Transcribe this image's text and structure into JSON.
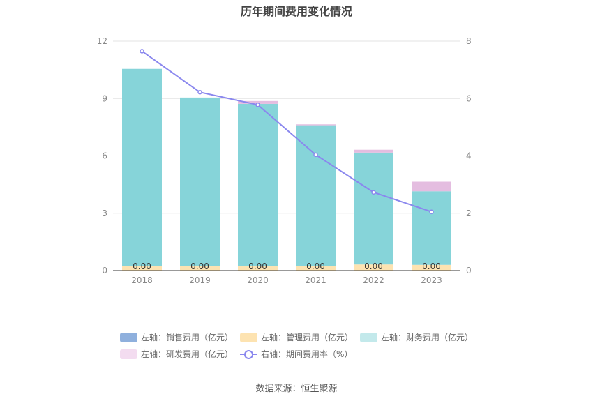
{
  "chart_data": {
    "type": "bar",
    "title": "历年期间费用变化情况",
    "categories": [
      "2018",
      "2019",
      "2020",
      "2021",
      "2022",
      "2023"
    ],
    "stacked": true,
    "left_axis": {
      "min": 0,
      "max": 12,
      "ticks": [
        "0",
        "3",
        "6",
        "9",
        "12"
      ]
    },
    "right_axis": {
      "min": 0,
      "max": 8,
      "ticks": [
        "0",
        "2",
        "4",
        "6",
        "8"
      ]
    },
    "series": [
      {
        "name": "左轴：销售费用（亿元）",
        "axis": "left",
        "type": "bar",
        "color": "#8fb0dd",
        "values": [
          0,
          0,
          0,
          0,
          0,
          0
        ],
        "labels": [
          "0.00",
          "0.00",
          "0.00",
          "0.00",
          "0.00",
          "0.00"
        ]
      },
      {
        "name": "左轴：管理费用（亿元）",
        "axis": "left",
        "type": "bar",
        "color": "#fde3b1",
        "values": [
          0.25,
          0.25,
          0.22,
          0.25,
          0.32,
          0.3
        ]
      },
      {
        "name": "左轴：财务费用（亿元）",
        "axis": "left",
        "type": "bar",
        "color": "#86d4d9",
        "values": [
          10.3,
          8.8,
          8.5,
          7.35,
          5.85,
          3.85
        ]
      },
      {
        "name": "左轴：研发费用（亿元）",
        "axis": "left",
        "type": "bar",
        "color": "#e4bde0",
        "values": [
          0,
          0,
          0.15,
          0.05,
          0.15,
          0.5
        ]
      },
      {
        "name": "右轴：期间费用率（%）",
        "axis": "right",
        "type": "line",
        "color": "#8a87ee",
        "values": [
          7.65,
          6.22,
          5.78,
          4.04,
          2.73,
          2.05
        ]
      }
    ],
    "legend_position": "bottom",
    "grid": true,
    "source": "数据来源：恒生聚源"
  }
}
